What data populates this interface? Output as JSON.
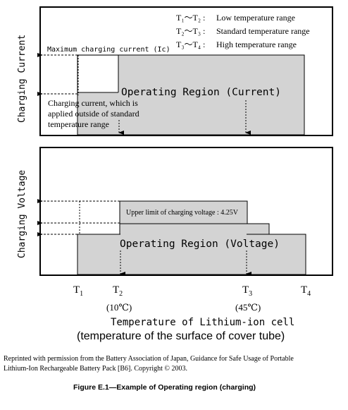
{
  "legend": {
    "items": [
      {
        "range": "T₁〜T₂ :",
        "label": "Low temperature range"
      },
      {
        "range": "T₂〜T₃ :",
        "label": "Standard temperature range"
      },
      {
        "range": "T₃〜T₄ :",
        "label": "High temperature range"
      }
    ]
  },
  "top_panel": {
    "axis_label": "Charging Current",
    "max_current_label": "Maximum charging current (Ic)",
    "region_label": "Operating Region (Current)",
    "note_lines": [
      "Charging current, which is",
      "applied outside of standard",
      "temperature range"
    ]
  },
  "bottom_panel": {
    "axis_label": "Charging Voltage",
    "upper_limit_label": "Upper limit of charging voltage : 4.25V",
    "region_label": "Operating Region (Voltage)"
  },
  "x_axis": {
    "ticks": [
      {
        "label": "T",
        "sub": "1",
        "temp": ""
      },
      {
        "label": "T",
        "sub": "2",
        "temp": "(10℃)"
      },
      {
        "label": "T",
        "sub": "3",
        "temp": "(45℃)"
      },
      {
        "label": "T",
        "sub": "4",
        "temp": ""
      }
    ],
    "title": "Temperature of Lithium-ion cell",
    "subtitle": "(temperature of the surface of cover tube)"
  },
  "credit": {
    "line1": "Reprinted with permission from the Battery Association of Japan, Guidance for Safe Usage of Portable",
    "line2": "Lithium-Ion Rechargeable Battery Pack [B6]. Copyright © 2003."
  },
  "figure_caption": "Figure E.1—Example of Operating region (charging)",
  "colors": {
    "region_fill": "#d3d3d3",
    "line": "#000000",
    "background": "#ffffff"
  }
}
